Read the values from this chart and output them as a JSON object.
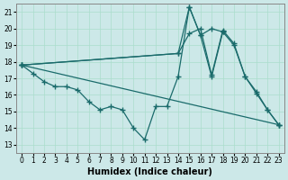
{
  "xlabel": "Humidex (Indice chaleur)",
  "background_color": "#cce8e8",
  "line_color": "#1a6b6b",
  "xlim": [
    -0.5,
    23.5
  ],
  "ylim": [
    12.5,
    21.5
  ],
  "yticks": [
    13,
    14,
    15,
    16,
    17,
    18,
    19,
    20,
    21
  ],
  "xticks": [
    0,
    1,
    2,
    3,
    4,
    5,
    6,
    7,
    8,
    9,
    10,
    11,
    12,
    13,
    14,
    15,
    16,
    17,
    18,
    19,
    20,
    21,
    22,
    23
  ],
  "lines": [
    {
      "x": [
        0,
        1,
        2,
        3,
        4,
        5,
        6,
        7,
        8,
        9,
        10,
        11,
        12,
        13,
        14,
        15,
        16,
        17,
        18,
        19,
        20,
        21,
        22,
        23
      ],
      "y": [
        17.8,
        17.3,
        16.8,
        16.5,
        16.5,
        16.3,
        15.6,
        15.1,
        15.3,
        15.1,
        14.0,
        13.3,
        15.3,
        15.3,
        17.1,
        21.3,
        19.6,
        17.1,
        19.8,
        19.0,
        17.1,
        16.1,
        15.1,
        14.2
      ]
    },
    {
      "x": [
        0,
        14,
        15,
        16,
        17,
        18,
        19,
        20,
        21,
        22,
        23
      ],
      "y": [
        17.8,
        18.5,
        19.7,
        20.0,
        17.2,
        19.9,
        19.1,
        17.1,
        16.2,
        15.1,
        14.2
      ]
    },
    {
      "x": [
        0,
        23
      ],
      "y": [
        17.8,
        14.2
      ]
    },
    {
      "x": [
        0,
        14,
        15,
        16,
        17,
        18
      ],
      "y": [
        17.8,
        18.5,
        21.3,
        19.6,
        20.0,
        19.8
      ]
    }
  ]
}
